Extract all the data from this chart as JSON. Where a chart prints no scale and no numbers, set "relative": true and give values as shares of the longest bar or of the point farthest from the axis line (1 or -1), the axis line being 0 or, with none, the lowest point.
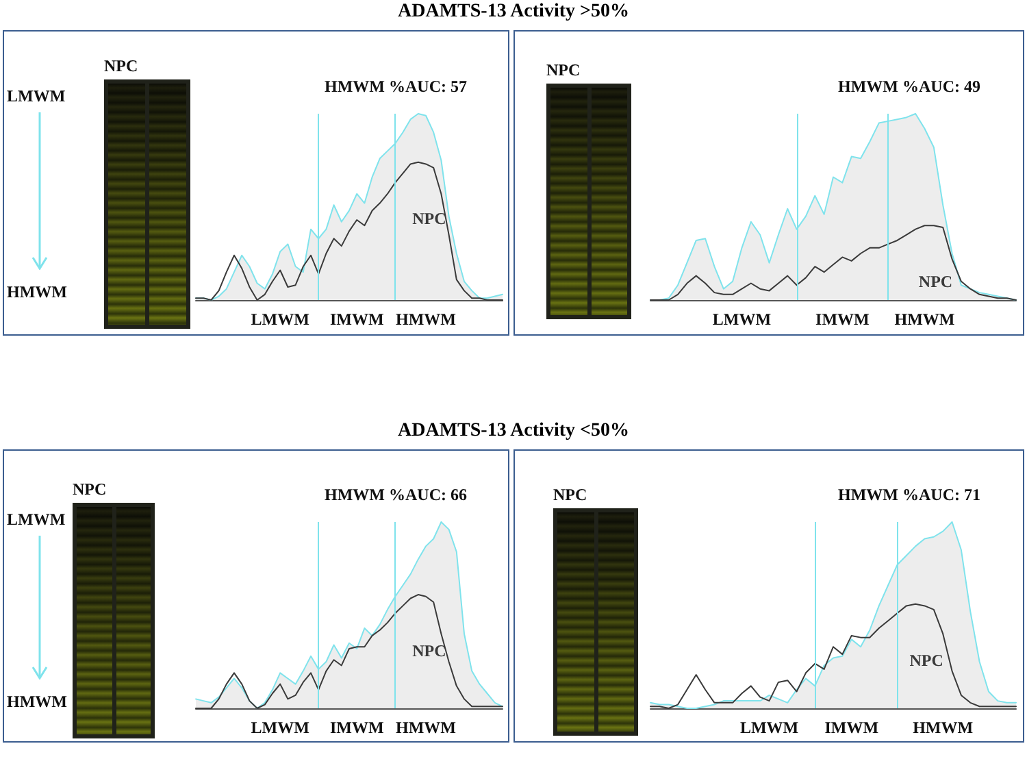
{
  "chart_data": [
    {
      "type": "line",
      "title": "ADAMTS-13 Activity >50%",
      "relative": true,
      "legend": false,
      "grid": false,
      "marker": "none",
      "line_style": "solid",
      "categories": [
        null,
        null,
        null,
        null,
        null,
        null,
        null,
        null,
        null,
        null,
        null,
        "LMWM",
        null,
        null,
        null,
        null,
        null,
        null,
        null,
        null,
        null,
        "IMWM",
        null,
        null,
        null,
        null,
        null,
        null,
        null,
        null,
        "HMWM",
        null,
        null,
        null,
        null,
        null,
        null,
        null,
        null,
        null,
        null
      ],
      "series": [
        {
          "type": "area",
          "color": "#7fe3ec",
          "values": [
            0.01,
            0.01,
            0,
            0.02,
            0.06,
            0.15,
            0.24,
            0.18,
            0.09,
            0.06,
            0.14,
            0.26,
            0.3,
            0.18,
            0.15,
            0.38,
            0.33,
            0.38,
            0.51,
            0.42,
            0.48,
            0.57,
            0.52,
            0.66,
            0.76,
            0.8,
            0.84,
            0.9,
            0.97,
            1.0,
            0.99,
            0.9,
            0.75,
            0.45,
            0.25,
            0.1,
            0.05,
            0.01,
            0.01,
            0.02,
            0.03
          ]
        },
        {
          "name": "NPC",
          "color": "#3a3a3a",
          "values": [
            0.01,
            0.01,
            0,
            0.05,
            0.15,
            0.24,
            0.17,
            0.07,
            0,
            0.03,
            0.1,
            0.16,
            0.07,
            0.08,
            0.18,
            0.24,
            0.14,
            0.25,
            0.33,
            0.29,
            0.37,
            0.43,
            0.4,
            0.48,
            0.52,
            0.57,
            0.63,
            0.68,
            0.73,
            0.74,
            0.73,
            0.71,
            0.57,
            0.35,
            0.11,
            0.05,
            0.01,
            0.01,
            0,
            0,
            0
          ]
        }
      ],
      "annotations": [
        "HMWM %AUC: 57",
        "NPC",
        "LMWM",
        "HMWM"
      ]
    },
    {
      "type": "line",
      "relative": true,
      "legend": false,
      "grid": false,
      "marker": "none",
      "line_style": "solid",
      "categories": [
        null,
        null,
        null,
        null,
        null,
        null,
        null,
        null,
        null,
        null,
        "LMWM",
        null,
        null,
        null,
        null,
        null,
        null,
        null,
        null,
        null,
        null,
        "IMWM",
        null,
        null,
        null,
        null,
        null,
        null,
        null,
        null,
        "HMWM",
        null,
        null,
        null,
        null,
        null,
        null,
        null,
        null,
        null,
        null
      ],
      "series": [
        {
          "type": "area",
          "color": "#7fe3ec",
          "values": [
            0,
            0,
            0.01,
            0.08,
            0.2,
            0.32,
            0.33,
            0.18,
            0.06,
            0.1,
            0.28,
            0.42,
            0.35,
            0.2,
            0.35,
            0.49,
            0.38,
            0.45,
            0.56,
            0.46,
            0.66,
            0.63,
            0.77,
            0.76,
            0.85,
            0.95,
            0.96,
            0.97,
            0.98,
            1.0,
            0.92,
            0.82,
            0.51,
            0.25,
            0.08,
            0.06,
            0.04,
            0.03,
            0.02,
            0.01,
            0
          ]
        },
        {
          "name": "NPC",
          "color": "#3a3a3a",
          "values": [
            0,
            0,
            0,
            0.03,
            0.09,
            0.13,
            0.09,
            0.04,
            0.03,
            0.03,
            0.06,
            0.09,
            0.06,
            0.05,
            0.09,
            0.13,
            0.08,
            0.12,
            0.18,
            0.15,
            0.19,
            0.23,
            0.21,
            0.25,
            0.28,
            0.28,
            0.3,
            0.32,
            0.35,
            0.38,
            0.4,
            0.4,
            0.39,
            0.22,
            0.1,
            0.06,
            0.03,
            0.02,
            0.01,
            0.01,
            0
          ]
        }
      ],
      "annotations": [
        "HMWM %AUC: 49",
        "NPC"
      ]
    },
    {
      "type": "line",
      "title": "ADAMTS-13 Activity <50%",
      "relative": true,
      "legend": false,
      "grid": false,
      "marker": "none",
      "line_style": "solid",
      "categories": [
        null,
        null,
        null,
        null,
        null,
        null,
        null,
        null,
        null,
        null,
        null,
        "LMWM",
        null,
        null,
        null,
        null,
        null,
        null,
        null,
        null,
        null,
        "IMWM",
        null,
        null,
        null,
        null,
        null,
        null,
        null,
        null,
        "HMWM",
        null,
        null,
        null,
        null,
        null,
        null,
        null,
        null,
        null,
        null
      ],
      "series": [
        {
          "type": "area",
          "color": "#7fe3ec",
          "values": [
            0.05,
            0.04,
            0.03,
            0.06,
            0.11,
            0.16,
            0.11,
            0.04,
            0,
            0.03,
            0.1,
            0.19,
            0.16,
            0.13,
            0.2,
            0.28,
            0.21,
            0.25,
            0.34,
            0.27,
            0.35,
            0.32,
            0.43,
            0.39,
            0.45,
            0.53,
            0.6,
            0.66,
            0.72,
            0.8,
            0.87,
            0.91,
            1.0,
            0.96,
            0.84,
            0.4,
            0.2,
            0.13,
            0.08,
            0.03,
            0.01
          ]
        },
        {
          "name": "NPC",
          "color": "#3a3a3a",
          "values": [
            0,
            0,
            0,
            0.05,
            0.13,
            0.19,
            0.13,
            0.04,
            0,
            0.02,
            0.08,
            0.13,
            0.05,
            0.07,
            0.14,
            0.19,
            0.1,
            0.2,
            0.26,
            0.23,
            0.32,
            0.33,
            0.33,
            0.39,
            0.42,
            0.46,
            0.51,
            0.55,
            0.59,
            0.61,
            0.6,
            0.57,
            0.4,
            0.25,
            0.12,
            0.05,
            0.01,
            0.01,
            0.01,
            0.01,
            0.01
          ]
        }
      ],
      "annotations": [
        "HMWM %AUC: 66",
        "NPC",
        "LMWM",
        "HMWM"
      ]
    },
    {
      "type": "line",
      "relative": true,
      "legend": false,
      "grid": false,
      "marker": "none",
      "line_style": "solid",
      "categories": [
        null,
        null,
        null,
        null,
        null,
        null,
        null,
        null,
        null,
        null,
        null,
        null,
        null,
        "LMWM",
        null,
        null,
        null,
        null,
        null,
        null,
        null,
        null,
        "IMWM",
        null,
        null,
        null,
        null,
        null,
        null,
        null,
        null,
        null,
        "HMWM",
        null,
        null,
        null,
        null,
        null,
        null,
        null,
        null
      ],
      "series": [
        {
          "type": "area",
          "color": "#7fe3ec",
          "values": [
            0.03,
            0.02,
            0.02,
            0.01,
            0,
            0,
            0.01,
            0.02,
            0.04,
            0.04,
            0.04,
            0.04,
            0.04,
            0.07,
            0.05,
            0.03,
            0.1,
            0.16,
            0.12,
            0.23,
            0.27,
            0.28,
            0.37,
            0.33,
            0.42,
            0.55,
            0.66,
            0.77,
            0.82,
            0.87,
            0.91,
            0.92,
            0.95,
            1.0,
            0.85,
            0.52,
            0.25,
            0.09,
            0.04,
            0.03,
            0.03
          ]
        },
        {
          "name": "NPC",
          "color": "#3a3a3a",
          "values": [
            0.01,
            0.01,
            0,
            0.02,
            0.1,
            0.18,
            0.1,
            0.03,
            0.03,
            0.03,
            0.08,
            0.12,
            0.06,
            0.04,
            0.14,
            0.15,
            0.09,
            0.19,
            0.24,
            0.21,
            0.33,
            0.29,
            0.39,
            0.38,
            0.38,
            0.43,
            0.47,
            0.51,
            0.55,
            0.56,
            0.55,
            0.53,
            0.4,
            0.2,
            0.07,
            0.03,
            0.01,
            0.01,
            0.01,
            0.01,
            0.01
          ]
        }
      ],
      "annotations": [
        "HMWM %AUC: 71",
        "NPC"
      ]
    }
  ]
}
